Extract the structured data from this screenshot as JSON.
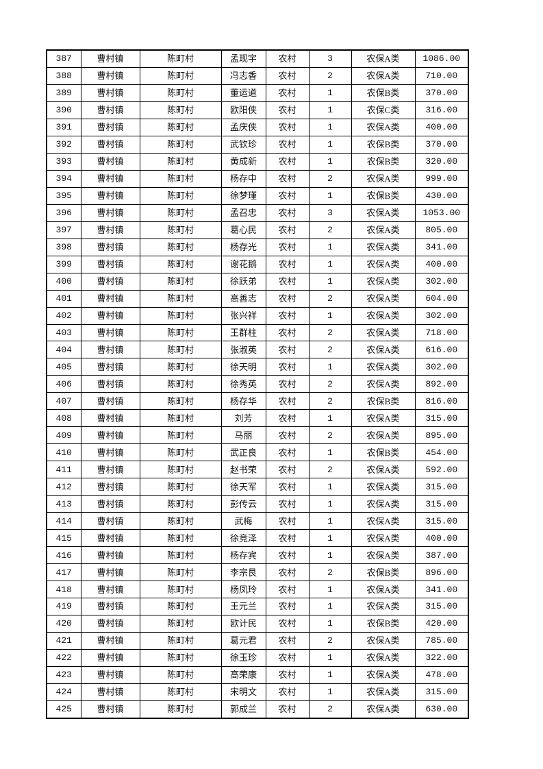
{
  "table": {
    "rows": [
      [
        "387",
        "曹村镇",
        "陈町村",
        "孟现宇",
        "农村",
        "3",
        "农保A类",
        "1086.00"
      ],
      [
        "388",
        "曹村镇",
        "陈町村",
        "冯志香",
        "农村",
        "2",
        "农保A类",
        "710.00"
      ],
      [
        "389",
        "曹村镇",
        "陈町村",
        "董运道",
        "农村",
        "1",
        "农保B类",
        "370.00"
      ],
      [
        "390",
        "曹村镇",
        "陈町村",
        "欧阳侠",
        "农村",
        "1",
        "农保C类",
        "316.00"
      ],
      [
        "391",
        "曹村镇",
        "陈町村",
        "孟庆侠",
        "农村",
        "1",
        "农保A类",
        "400.00"
      ],
      [
        "392",
        "曹村镇",
        "陈町村",
        "武钦珍",
        "农村",
        "1",
        "农保B类",
        "370.00"
      ],
      [
        "393",
        "曹村镇",
        "陈町村",
        "黄成新",
        "农村",
        "1",
        "农保B类",
        "320.00"
      ],
      [
        "394",
        "曹村镇",
        "陈町村",
        "杨存中",
        "农村",
        "2",
        "农保A类",
        "999.00"
      ],
      [
        "395",
        "曹村镇",
        "陈町村",
        "徐梦瑾",
        "农村",
        "1",
        "农保B类",
        "430.00"
      ],
      [
        "396",
        "曹村镇",
        "陈町村",
        "孟召忠",
        "农村",
        "3",
        "农保A类",
        "1053.00"
      ],
      [
        "397",
        "曹村镇",
        "陈町村",
        "葛心民",
        "农村",
        "2",
        "农保A类",
        "805.00"
      ],
      [
        "398",
        "曹村镇",
        "陈町村",
        "杨存光",
        "农村",
        "1",
        "农保A类",
        "341.00"
      ],
      [
        "399",
        "曹村镇",
        "陈町村",
        "谢花鹅",
        "农村",
        "1",
        "农保A类",
        "400.00"
      ],
      [
        "400",
        "曹村镇",
        "陈町村",
        "徐跃弟",
        "农村",
        "1",
        "农保A类",
        "302.00"
      ],
      [
        "401",
        "曹村镇",
        "陈町村",
        "高善志",
        "农村",
        "2",
        "农保A类",
        "604.00"
      ],
      [
        "402",
        "曹村镇",
        "陈町村",
        "张兴祥",
        "农村",
        "1",
        "农保A类",
        "302.00"
      ],
      [
        "403",
        "曹村镇",
        "陈町村",
        "王群柱",
        "农村",
        "2",
        "农保A类",
        "718.00"
      ],
      [
        "404",
        "曹村镇",
        "陈町村",
        "张淑英",
        "农村",
        "2",
        "农保A类",
        "616.00"
      ],
      [
        "405",
        "曹村镇",
        "陈町村",
        "徐天明",
        "农村",
        "1",
        "农保A类",
        "302.00"
      ],
      [
        "406",
        "曹村镇",
        "陈町村",
        "徐秀英",
        "农村",
        "2",
        "农保A类",
        "892.00"
      ],
      [
        "407",
        "曹村镇",
        "陈町村",
        "杨存华",
        "农村",
        "2",
        "农保B类",
        "816.00"
      ],
      [
        "408",
        "曹村镇",
        "陈町村",
        "刘芳",
        "农村",
        "1",
        "农保A类",
        "315.00"
      ],
      [
        "409",
        "曹村镇",
        "陈町村",
        "马丽",
        "农村",
        "2",
        "农保A类",
        "895.00"
      ],
      [
        "410",
        "曹村镇",
        "陈町村",
        "武正良",
        "农村",
        "1",
        "农保B类",
        "454.00"
      ],
      [
        "411",
        "曹村镇",
        "陈町村",
        "赵书荣",
        "农村",
        "2",
        "农保A类",
        "592.00"
      ],
      [
        "412",
        "曹村镇",
        "陈町村",
        "徐天军",
        "农村",
        "1",
        "农保A类",
        "315.00"
      ],
      [
        "413",
        "曹村镇",
        "陈町村",
        "彭传云",
        "农村",
        "1",
        "农保A类",
        "315.00"
      ],
      [
        "414",
        "曹村镇",
        "陈町村",
        "武梅",
        "农村",
        "1",
        "农保A类",
        "315.00"
      ],
      [
        "415",
        "曹村镇",
        "陈町村",
        "徐竞泽",
        "农村",
        "1",
        "农保A类",
        "400.00"
      ],
      [
        "416",
        "曹村镇",
        "陈町村",
        "杨存宾",
        "农村",
        "1",
        "农保A类",
        "387.00"
      ],
      [
        "417",
        "曹村镇",
        "陈町村",
        "李宗艮",
        "农村",
        "2",
        "农保B类",
        "896.00"
      ],
      [
        "418",
        "曹村镇",
        "陈町村",
        "杨凤玲",
        "农村",
        "1",
        "农保A类",
        "341.00"
      ],
      [
        "419",
        "曹村镇",
        "陈町村",
        "王元兰",
        "农村",
        "1",
        "农保A类",
        "315.00"
      ],
      [
        "420",
        "曹村镇",
        "陈町村",
        "欧计民",
        "农村",
        "1",
        "农保B类",
        "420.00"
      ],
      [
        "421",
        "曹村镇",
        "陈町村",
        "葛元君",
        "农村",
        "2",
        "农保A类",
        "785.00"
      ],
      [
        "422",
        "曹村镇",
        "陈町村",
        "徐玉珍",
        "农村",
        "1",
        "农保A类",
        "322.00"
      ],
      [
        "423",
        "曹村镇",
        "陈町村",
        "高荣康",
        "农村",
        "1",
        "农保A类",
        "478.00"
      ],
      [
        "424",
        "曹村镇",
        "陈町村",
        "宋明文",
        "农村",
        "1",
        "农保A类",
        "315.00"
      ],
      [
        "425",
        "曹村镇",
        "陈町村",
        "郭成兰",
        "农村",
        "2",
        "农保A类",
        "630.00"
      ]
    ]
  }
}
